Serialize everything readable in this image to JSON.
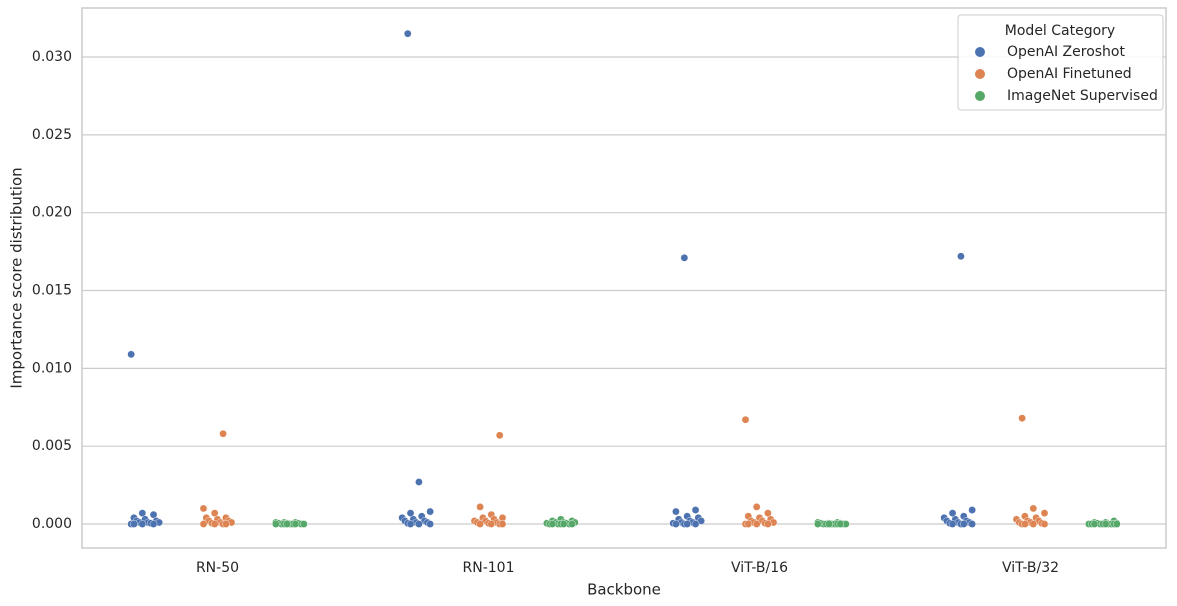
{
  "chart_data": {
    "type": "strip",
    "x_label": "Backbone",
    "y_label": "Importance score distribution",
    "categories": [
      "RN-50",
      "RN-101",
      "ViT-B/16",
      "ViT-B/32"
    ],
    "ylim": [
      -0.00154,
      0.03315
    ],
    "yticks": [
      {
        "value": 0,
        "label": "0.000"
      },
      {
        "value": 0.005,
        "label": "0.005"
      },
      {
        "value": 0.01,
        "label": "0.010"
      },
      {
        "value": 0.015,
        "label": "0.015"
      },
      {
        "value": 0.02,
        "label": "0.020"
      },
      {
        "value": 0.025,
        "label": "0.025"
      },
      {
        "value": 0.03,
        "label": "0.030"
      }
    ],
    "grid": true,
    "legend_title": "Model Category",
    "legend_position": "upper right",
    "series": [
      {
        "name": "OpenAI Zeroshot",
        "color": "#4c72b0",
        "values": [
          [
            0.0109,
            0.0007,
            0.0006,
            0.0004,
            0.0003,
            0.0002,
            0.0002,
            0.0001,
            0.0001,
            0.0001,
            5e-05,
            0,
            0,
            0,
            0
          ],
          [
            0.0315,
            0.0027,
            0.0008,
            0.0007,
            0.0005,
            0.0004,
            0.0003,
            0.0002,
            0.0002,
            0.0001,
            0.0001,
            5e-05,
            0,
            0,
            0
          ],
          [
            0.0171,
            0.0009,
            0.0008,
            0.0005,
            0.0004,
            0.0003,
            0.0002,
            0.0002,
            0.0001,
            0.0001,
            5e-05,
            0,
            0,
            0,
            0
          ],
          [
            0.0172,
            0.0009,
            0.0007,
            0.0005,
            0.0004,
            0.0003,
            0.0002,
            0.0002,
            0.0001,
            0.0001,
            5e-05,
            0,
            0,
            0,
            0
          ]
        ]
      },
      {
        "name": "OpenAI Finetuned",
        "color": "#dd8452",
        "values": [
          [
            0.0058,
            0.001,
            0.0007,
            0.0004,
            0.0004,
            0.0003,
            0.0002,
            0.0002,
            0.0001,
            0.0001,
            5e-05,
            0,
            0,
            0,
            0
          ],
          [
            0.0057,
            0.0011,
            0.0006,
            0.0004,
            0.0004,
            0.0003,
            0.0002,
            0.0002,
            0.0001,
            0.0001,
            5e-05,
            0,
            0,
            0,
            0
          ],
          [
            0.0067,
            0.0011,
            0.0007,
            0.0005,
            0.0004,
            0.0003,
            0.0002,
            0.0002,
            0.0001,
            0.0001,
            5e-05,
            0,
            0,
            0,
            0
          ],
          [
            0.0068,
            0.001,
            0.0007,
            0.0005,
            0.0004,
            0.0003,
            0.0002,
            0.0002,
            0.0001,
            0.0001,
            5e-05,
            0,
            0,
            0,
            0
          ]
        ]
      },
      {
        "name": "ImageNet Supervised",
        "color": "#55a868",
        "values": [
          [
            0.0001,
            0.0001,
            0.0001,
            5e-05,
            5e-05,
            5e-05,
            0,
            0,
            0,
            0,
            0,
            0,
            0,
            0,
            0
          ],
          [
            0.0003,
            0.0002,
            0.0002,
            0.0001,
            0.0001,
            0.0001,
            5e-05,
            5e-05,
            0,
            0,
            0,
            0,
            0,
            0,
            0
          ],
          [
            0.0001,
            0.0001,
            5e-05,
            5e-05,
            5e-05,
            0,
            0,
            0,
            0,
            0,
            0,
            0,
            0,
            0,
            0
          ],
          [
            0.0002,
            0.0001,
            0.0001,
            5e-05,
            5e-05,
            0,
            0,
            0,
            0,
            0,
            0,
            0,
            0,
            0,
            0
          ]
        ]
      }
    ]
  }
}
